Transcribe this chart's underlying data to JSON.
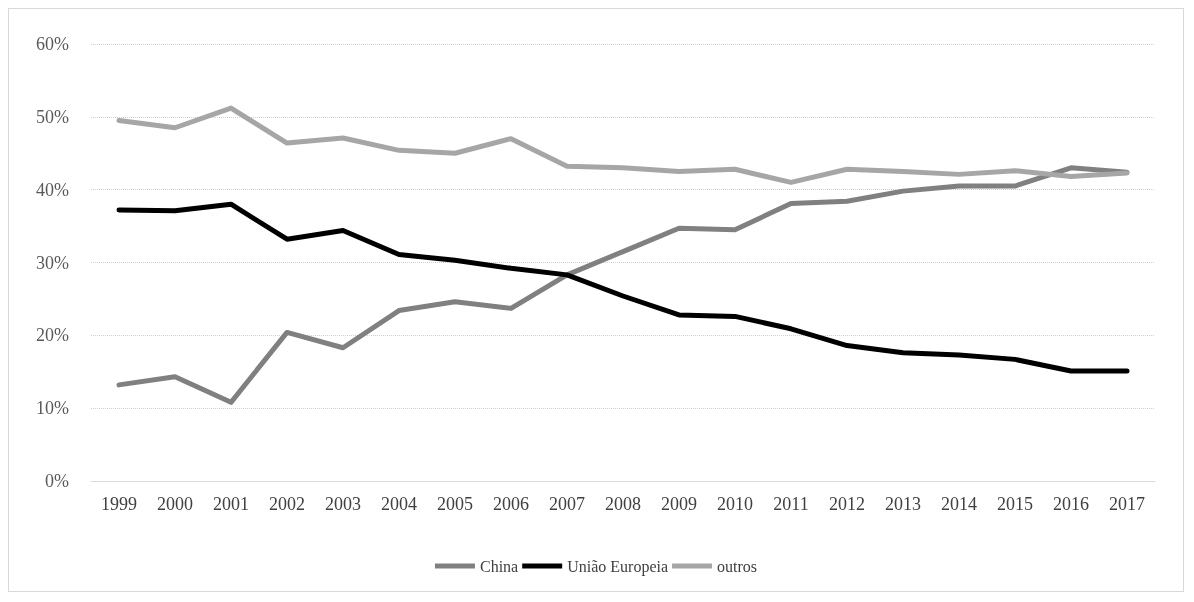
{
  "chart_data": {
    "type": "line",
    "categories": [
      "1999",
      "2000",
      "2001",
      "2002",
      "2003",
      "2004",
      "2005",
      "2006",
      "2007",
      "2008",
      "2009",
      "2010",
      "2011",
      "2012",
      "2013",
      "2014",
      "2015",
      "2016",
      "2017"
    ],
    "series": [
      {
        "name": "China",
        "color": "#808080",
        "values": [
          13.2,
          14.3,
          10.8,
          20.4,
          18.3,
          23.4,
          24.6,
          23.7,
          28.3,
          31.5,
          34.7,
          34.5,
          38.1,
          38.4,
          39.8,
          40.5,
          40.5,
          43.0,
          42.4
        ]
      },
      {
        "name": "União Europeia",
        "color": "#000000",
        "values": [
          37.2,
          37.1,
          38.0,
          33.2,
          34.4,
          31.1,
          30.3,
          29.2,
          28.3,
          25.4,
          22.8,
          22.6,
          20.9,
          18.6,
          17.6,
          17.3,
          16.7,
          15.1,
          15.1
        ]
      },
      {
        "name": "outros",
        "color": "#a6a6a6",
        "values": [
          49.5,
          48.5,
          51.2,
          46.4,
          47.1,
          45.4,
          45.0,
          47.0,
          43.2,
          43.0,
          42.5,
          42.8,
          41.0,
          42.8,
          42.5,
          42.1,
          42.6,
          41.8,
          42.3
        ]
      }
    ],
    "ylim": [
      0,
      60
    ],
    "yticks": [
      {
        "value": 0,
        "label": "0%"
      },
      {
        "value": 10,
        "label": "10%"
      },
      {
        "value": 20,
        "label": "20%"
      },
      {
        "value": 30,
        "label": "30%"
      },
      {
        "value": 40,
        "label": "40%"
      },
      {
        "value": 50,
        "label": "50%"
      },
      {
        "value": 60,
        "label": "60%"
      }
    ],
    "grid": "y",
    "legend": "bottom",
    "marker": "none",
    "line_style": "solid"
  }
}
